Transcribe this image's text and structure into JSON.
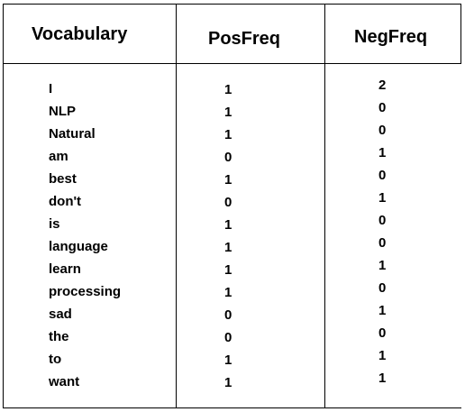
{
  "table": {
    "headers": {
      "vocabulary": "Vocabulary",
      "posfreq": "PosFreq",
      "negfreq": "NegFreq"
    },
    "rows": [
      {
        "word": "I",
        "pos": "1",
        "neg": "2"
      },
      {
        "word": "NLP",
        "pos": "1",
        "neg": "0"
      },
      {
        "word": "Natural",
        "pos": "1",
        "neg": "0"
      },
      {
        "word": "am",
        "pos": "0",
        "neg": "1"
      },
      {
        "word": "best",
        "pos": "1",
        "neg": "0"
      },
      {
        "word": "don't",
        "pos": "0",
        "neg": "1"
      },
      {
        "word": "is",
        "pos": "1",
        "neg": "0"
      },
      {
        "word": "language",
        "pos": "1",
        "neg": "0"
      },
      {
        "word": "learn",
        "pos": "1",
        "neg": "1"
      },
      {
        "word": "processing",
        "pos": "1",
        "neg": "0"
      },
      {
        "word": "sad",
        "pos": "0",
        "neg": "1"
      },
      {
        "word": "the",
        "pos": "0",
        "neg": "0"
      },
      {
        "word": "to",
        "pos": "1",
        "neg": "1"
      },
      {
        "word": "want",
        "pos": "1",
        "neg": "1"
      }
    ]
  }
}
